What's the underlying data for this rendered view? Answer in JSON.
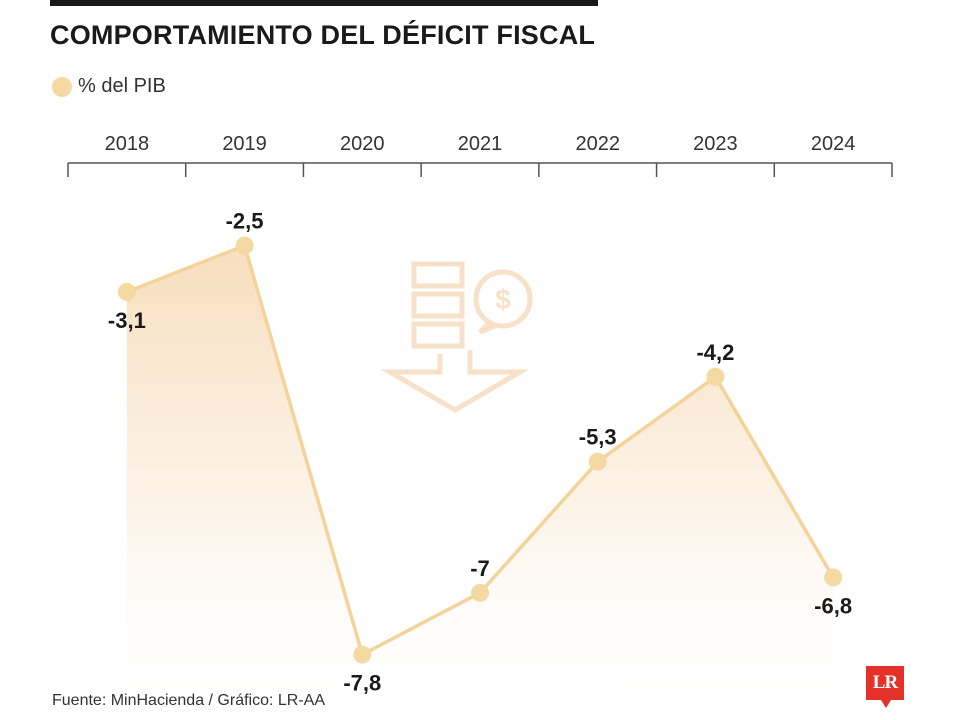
{
  "header": {
    "title": "COMPORTAMIENTO DEL DÉFICIT FISCAL"
  },
  "legend": {
    "label": "% del PIB",
    "color": "#f5d9a3"
  },
  "footer": {
    "source": "Fuente: MinHacienda / Gráfico: LR-AA",
    "logo_text": "LR"
  },
  "colors": {
    "line": "#f3d39a",
    "marker": "#f5d9a3",
    "fill_top": "#f7dcb9",
    "axis": "#555555",
    "logo": "#e4322b"
  },
  "chart_data": {
    "type": "line",
    "title": "COMPORTAMIENTO DEL DÉFICIT FISCAL",
    "categories": [
      "2018",
      "2019",
      "2020",
      "2021",
      "2022",
      "2023",
      "2024"
    ],
    "series": [
      {
        "name": "% del PIB",
        "values": [
          -3.1,
          -2.5,
          -7.8,
          -7.0,
          -5.3,
          -4.2,
          -6.8
        ],
        "labels": [
          "-3,1",
          "-2,5",
          "-7,8",
          "-7",
          "-5,3",
          "-4,2",
          "-6,8"
        ]
      }
    ],
    "xlabel": "",
    "ylabel": "",
    "ylim": [
      -8.0,
      -2.0
    ],
    "x_axis_position": "top",
    "grid": false,
    "legend_position": "top-left",
    "area_fill": true,
    "background_icon": "fiscal-deficit-icon"
  }
}
